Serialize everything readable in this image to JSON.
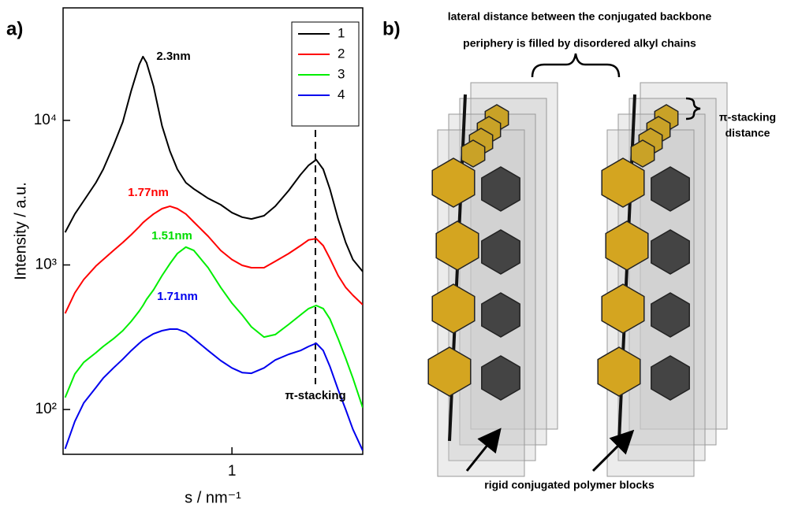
{
  "chart_data": {
    "type": "line",
    "panel_label": "a)",
    "x_label": "s / nm⁻¹",
    "y_label": "Intensity / a.u.",
    "xscale": "log",
    "yscale": "log",
    "xlim": [
      0.206,
      3.4
    ],
    "ylim": [
      49,
      60000
    ],
    "xticks": [
      1
    ],
    "yticks": [
      {
        "value": 100,
        "label": "10²"
      },
      {
        "value": 1000,
        "label": "10³"
      },
      {
        "value": 10000,
        "label": "10⁴"
      }
    ],
    "legend": "upper right",
    "x": [
      0.21,
      0.23,
      0.25,
      0.28,
      0.3,
      0.33,
      0.36,
      0.39,
      0.42,
      0.435,
      0.45,
      0.48,
      0.52,
      0.56,
      0.6,
      0.65,
      0.7,
      0.8,
      0.9,
      1.0,
      1.1,
      1.2,
      1.35,
      1.5,
      1.7,
      1.9,
      2.05,
      2.2,
      2.35,
      2.5,
      2.7,
      2.9,
      3.1,
      3.4
    ],
    "series": [
      {
        "name": "1",
        "color": "#000000",
        "values": [
          1680,
          2250,
          2780,
          3710,
          4590,
          6690,
          9750,
          16100,
          24400,
          27600,
          25000,
          17200,
          9160,
          6120,
          4590,
          3710,
          3360,
          2890,
          2610,
          2300,
          2140,
          2080,
          2190,
          2550,
          3270,
          4210,
          4890,
          5350,
          4590,
          3360,
          2080,
          1430,
          1090,
          900
        ]
      },
      {
        "name": "2",
        "color": "#ff0000",
        "values": [
          462,
          641,
          793,
          982,
          1090,
          1260,
          1430,
          1620,
          1840,
          1960,
          2060,
          2250,
          2450,
          2550,
          2450,
          2250,
          1980,
          1580,
          1260,
          1090,
          994,
          957,
          957,
          1060,
          1200,
          1360,
          1490,
          1520,
          1360,
          1110,
          844,
          699,
          617,
          531
        ]
      },
      {
        "name": "3",
        "color": "#00ee00",
        "values": [
          121,
          176,
          212,
          247,
          273,
          309,
          351,
          408,
          480,
          524,
          579,
          673,
          844,
          1020,
          1200,
          1330,
          1260,
          957,
          699,
          544,
          451,
          373,
          317,
          330,
          388,
          451,
          499,
          524,
          499,
          424,
          309,
          226,
          165,
          103
        ]
      },
      {
        "name": "4",
        "color": "#0000ee",
        "values": [
          53.4,
          82.8,
          111,
          142,
          165,
          194,
          223,
          256,
          287,
          302,
          313,
          334,
          351,
          360,
          360,
          342,
          309,
          256,
          218,
          194,
          180,
          178,
          194,
          220,
          241,
          256,
          273,
          287,
          256,
          199,
          137,
          100,
          73,
          52
        ]
      }
    ],
    "annotations": [
      {
        "text": "2.3nm",
        "color": "#000000"
      },
      {
        "text": "1.77nm",
        "color": "#ff0000"
      },
      {
        "text": "1.51nm",
        "color": "#00dd00"
      },
      {
        "text": "1.71nm",
        "color": "#0000ee"
      },
      {
        "text": "π-stacking",
        "color": "#000000"
      }
    ]
  },
  "panel_b": {
    "panel_label": "b)",
    "top_text": [
      "lateral distance between the conjugated backbone",
      "periphery is filled by disordered alkyl chains"
    ],
    "stacking_text": [
      "π-stacking",
      "distance"
    ],
    "bottom_text": "rigid conjugated polymer blocks"
  }
}
